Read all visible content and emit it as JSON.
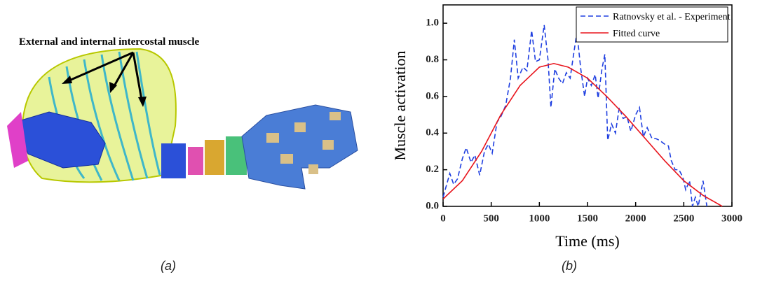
{
  "panel_a": {
    "annotation": "External and internal intercostal muscle",
    "caption": "(a)"
  },
  "panel_b": {
    "caption": "(b)"
  },
  "chart_data": {
    "type": "line",
    "xlabel": "Time (ms)",
    "ylabel": "Muscle activation",
    "xlim": [
      0,
      3000
    ],
    "xticks": [
      0,
      500,
      1000,
      1500,
      2000,
      2500,
      3000
    ],
    "ylim": [
      0,
      1.1
    ],
    "yticks": [
      {
        "value": 0,
        "label": "0.0"
      },
      0.2,
      0.4,
      0.6,
      0.8,
      {
        "value": 1,
        "label": "1.0"
      }
    ],
    "legend": "upper right",
    "series": [
      {
        "name": "Ratnovsky et al. - Experiment",
        "color": "#1f3fe0",
        "linestyle": "dashed",
        "x": [
          0,
          70,
          110,
          150,
          200,
          240,
          290,
          330,
          380,
          430,
          470,
          510,
          560,
          600,
          650,
          700,
          740,
          780,
          830,
          870,
          920,
          960,
          1000,
          1050,
          1090,
          1120,
          1160,
          1200,
          1240,
          1280,
          1320,
          1350,
          1390,
          1430,
          1470,
          1500,
          1540,
          1580,
          1610,
          1650,
          1680,
          1710,
          1750,
          1790,
          1830,
          1870,
          1910,
          1950,
          2000,
          2040,
          2080,
          2120,
          2170,
          2210,
          2250,
          2300,
          2340,
          2370,
          2410,
          2450,
          2490,
          2520,
          2560,
          2590,
          2620,
          2650,
          2700,
          2740
        ],
        "values": [
          0.05,
          0.18,
          0.12,
          0.15,
          0.26,
          0.32,
          0.24,
          0.28,
          0.17,
          0.3,
          0.34,
          0.29,
          0.46,
          0.49,
          0.55,
          0.7,
          0.91,
          0.7,
          0.76,
          0.74,
          0.96,
          0.79,
          0.8,
          0.99,
          0.8,
          0.54,
          0.75,
          0.7,
          0.67,
          0.73,
          0.7,
          0.81,
          0.95,
          0.75,
          0.6,
          0.7,
          0.66,
          0.72,
          0.59,
          0.75,
          0.83,
          0.36,
          0.45,
          0.4,
          0.54,
          0.48,
          0.49,
          0.41,
          0.5,
          0.54,
          0.38,
          0.43,
          0.37,
          0.37,
          0.36,
          0.34,
          0.33,
          0.25,
          0.2,
          0.2,
          0.16,
          0.09,
          0.14,
          0.0,
          0.05,
          0.0,
          0.14,
          0.0
        ]
      },
      {
        "name": "Fitted curve",
        "color": "#e8141c",
        "linestyle": "solid",
        "x": [
          0,
          200,
          400,
          600,
          800,
          1000,
          1150,
          1300,
          1500,
          1700,
          1900,
          2100,
          2300,
          2500,
          2700,
          2900
        ],
        "values": [
          0.04,
          0.14,
          0.3,
          0.5,
          0.66,
          0.76,
          0.78,
          0.76,
          0.7,
          0.6,
          0.49,
          0.37,
          0.25,
          0.14,
          0.06,
          0.0
        ]
      }
    ]
  }
}
